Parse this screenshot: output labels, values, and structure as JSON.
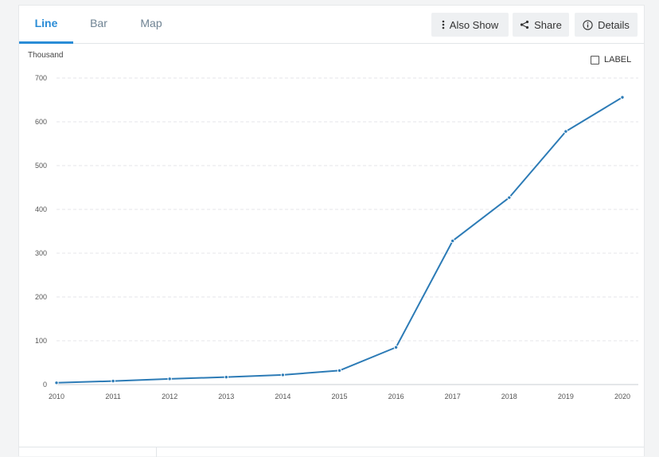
{
  "tabs": [
    {
      "label": "Line",
      "active": true
    },
    {
      "label": "Bar",
      "active": false
    },
    {
      "label": "Map",
      "active": false
    }
  ],
  "toolbar": {
    "also_show_label": "Also Show",
    "share_label": "Share",
    "details_label": "Details"
  },
  "icons": {
    "also_show": "vertical-ellipsis-icon",
    "share": "share-icon",
    "details": "info-icon"
  },
  "label_toggle": {
    "label": "LABEL",
    "checked": false
  },
  "colors": {
    "accent": "#2a8cd6",
    "line": "#2c7bb6",
    "grid": "#e4e6e8"
  },
  "chart_data": {
    "type": "line",
    "ylabel": "Thousand",
    "x": [
      2010,
      2011,
      2012,
      2013,
      2014,
      2015,
      2016,
      2017,
      2018,
      2019,
      2020
    ],
    "series": [
      {
        "values": [
          4,
          8,
          13,
          17,
          22,
          32,
          85,
          328,
          427,
          578,
          656
        ]
      }
    ],
    "ylim": [
      0,
      700
    ],
    "yticks": [
      0,
      100,
      200,
      300,
      400,
      500,
      600,
      700
    ],
    "xticks": [
      "2010",
      "2011",
      "2012",
      "2013",
      "2014",
      "2015",
      "2016",
      "2017",
      "2018",
      "2019",
      "2020"
    ],
    "grid": true,
    "legend": "none"
  }
}
